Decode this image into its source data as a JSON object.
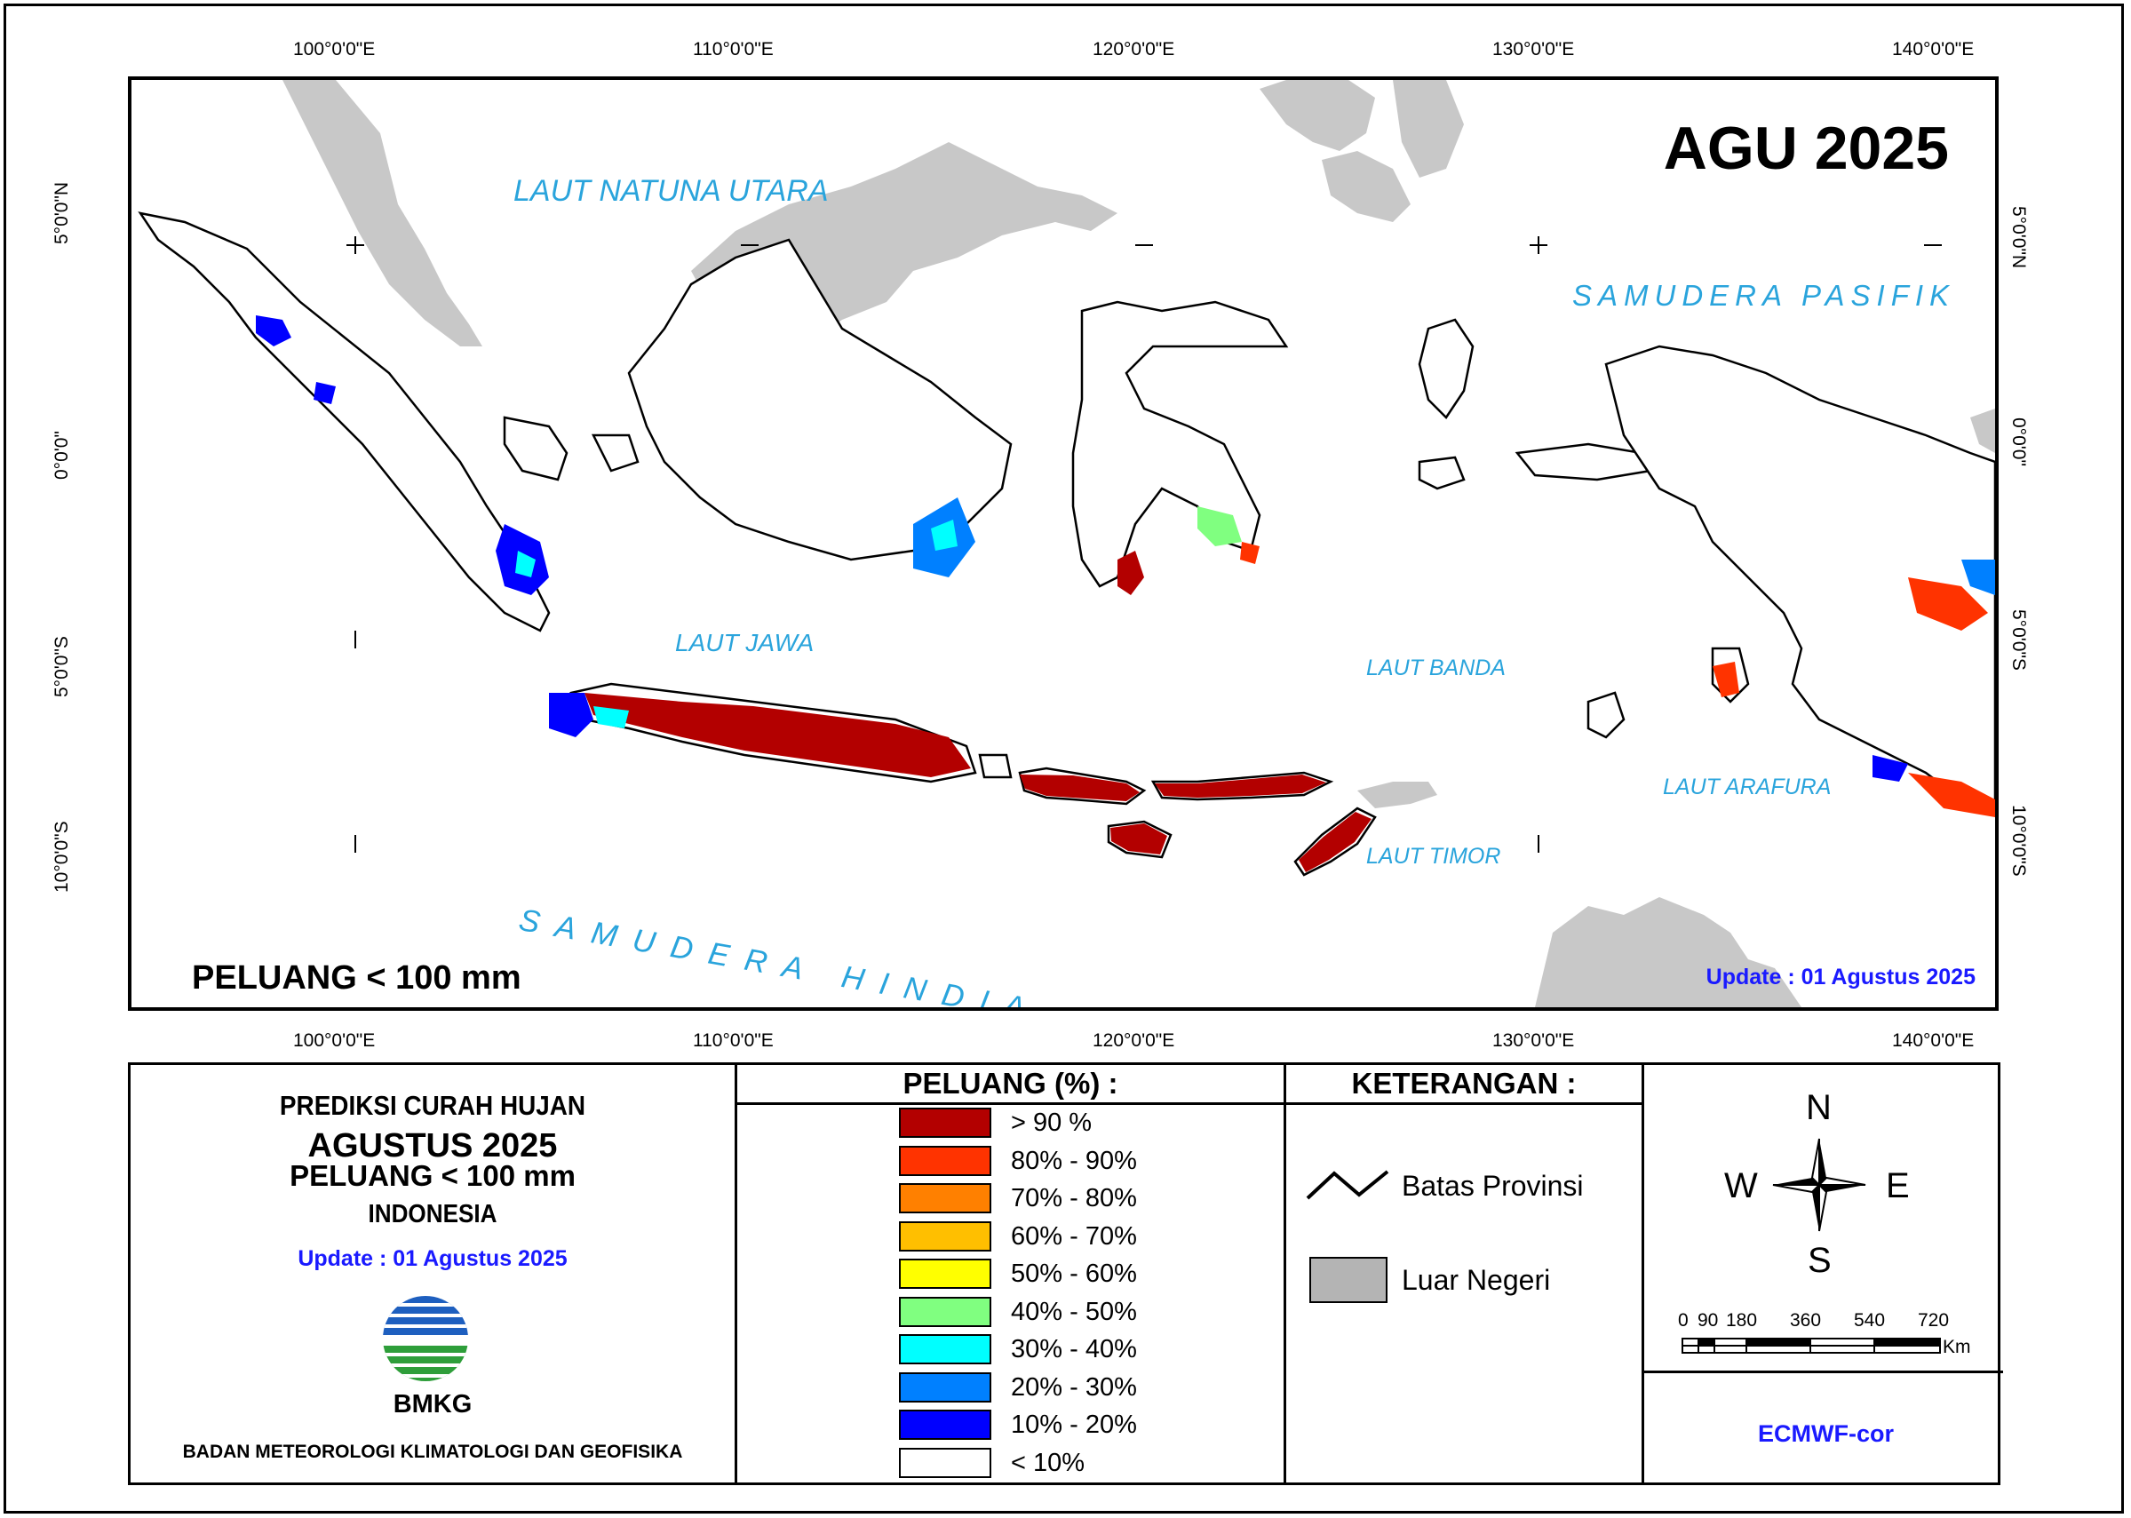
{
  "map": {
    "title": "AGU 2025",
    "subtitle": "PELUANG < 100 mm",
    "update": "Update : 01 Agustus  2025",
    "lon_labels": [
      "100°0'0\"E",
      "110°0'0\"E",
      "120°0'0\"E",
      "130°0'0\"E",
      "140°0'0\"E"
    ],
    "lat_labels": [
      "5°0'0\"N",
      "0°0'0\"",
      "5°0'0\"S",
      "10°0'0\"S"
    ],
    "seas": {
      "natuna": "LAUT NATUNA UTARA",
      "pasifik": "SAMUDERA PASIFIK",
      "jawa": "LAUT JAWA",
      "banda": "LAUT BANDA",
      "arafura": "LAUT ARAFURA",
      "timor": "LAUT TIMOR",
      "hindia": "SAMUDERA HINDIA"
    },
    "colors": {
      "land_foreign": "#c8c8c8",
      "sea_label": "#2aa4dc"
    }
  },
  "info": {
    "heading": "PREDIKSI CURAH HUJAN",
    "month": "AGUSTUS 2025",
    "threshold": "PELUANG < 100 mm",
    "region": "INDONESIA",
    "update": "Update : 01 Agustus  2025",
    "logo_text": "BMKG",
    "agency": "BADAN METEOROLOGI KLIMATOLOGI DAN GEOFISIKA"
  },
  "peluang": {
    "header": "PELUANG (%) :",
    "classes": [
      {
        "label": "> 90 %",
        "color": "#b30000"
      },
      {
        "label": "80% - 90%",
        "color": "#ff3300"
      },
      {
        "label": "70% - 80%",
        "color": "#ff8000"
      },
      {
        "label": "60% - 70%",
        "color": "#ffbf00"
      },
      {
        "label": "50% - 60%",
        "color": "#ffff00"
      },
      {
        "label": "40% - 50%",
        "color": "#80ff80"
      },
      {
        "label": "30% - 40%",
        "color": "#00ffff"
      },
      {
        "label": "20% - 30%",
        "color": "#0080ff"
      },
      {
        "label": "10% - 20%",
        "color": "#0000ff"
      },
      {
        "label": "< 10%",
        "color": "#ffffff"
      }
    ]
  },
  "keterangan": {
    "header": "KETERANGAN :",
    "batas": "Batas Provinsi",
    "luar": "Luar Negeri"
  },
  "compass": {
    "n": "N",
    "s": "S",
    "e": "E",
    "w": "W"
  },
  "scale": {
    "ticks": [
      "0",
      "90",
      "180",
      "360",
      "540",
      "720"
    ],
    "unit": "Km"
  },
  "model": "ECMWF-cor"
}
